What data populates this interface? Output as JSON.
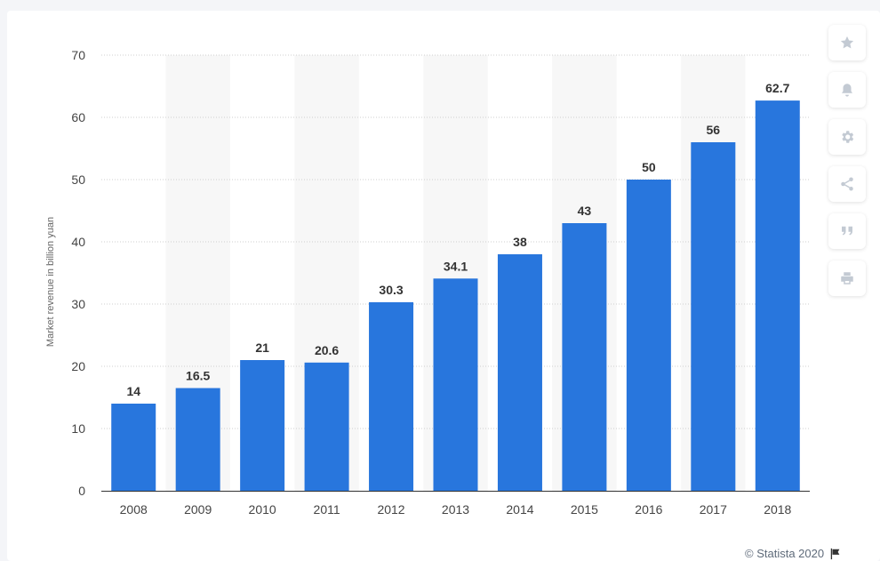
{
  "chart_data": {
    "type": "bar",
    "categories": [
      "2008",
      "2009",
      "2010",
      "2011",
      "2012",
      "2013",
      "2014",
      "2015",
      "2016",
      "2017",
      "2018"
    ],
    "values": [
      14,
      16.5,
      21,
      20.6,
      30.3,
      34.1,
      38,
      43,
      50,
      56,
      62.7
    ],
    "value_labels": [
      "14",
      "16.5",
      "21",
      "20.6",
      "30.3",
      "34.1",
      "38",
      "43",
      "50",
      "56",
      "62.7"
    ],
    "ylabel": "Market revenue in billion yuan",
    "ylim": [
      0,
      70
    ],
    "yticks": [
      "0",
      "10",
      "20",
      "30",
      "40",
      "50",
      "60",
      "70"
    ],
    "grid": true,
    "bar_color": "#2876dd",
    "band_color": "#f7f7f7"
  },
  "toolbar": {
    "icons": [
      "star-icon",
      "bell-icon",
      "gear-icon",
      "share-icon",
      "quote-icon",
      "print-icon"
    ]
  },
  "credit": {
    "text": "© Statista 2020",
    "icon": "flag-icon"
  }
}
